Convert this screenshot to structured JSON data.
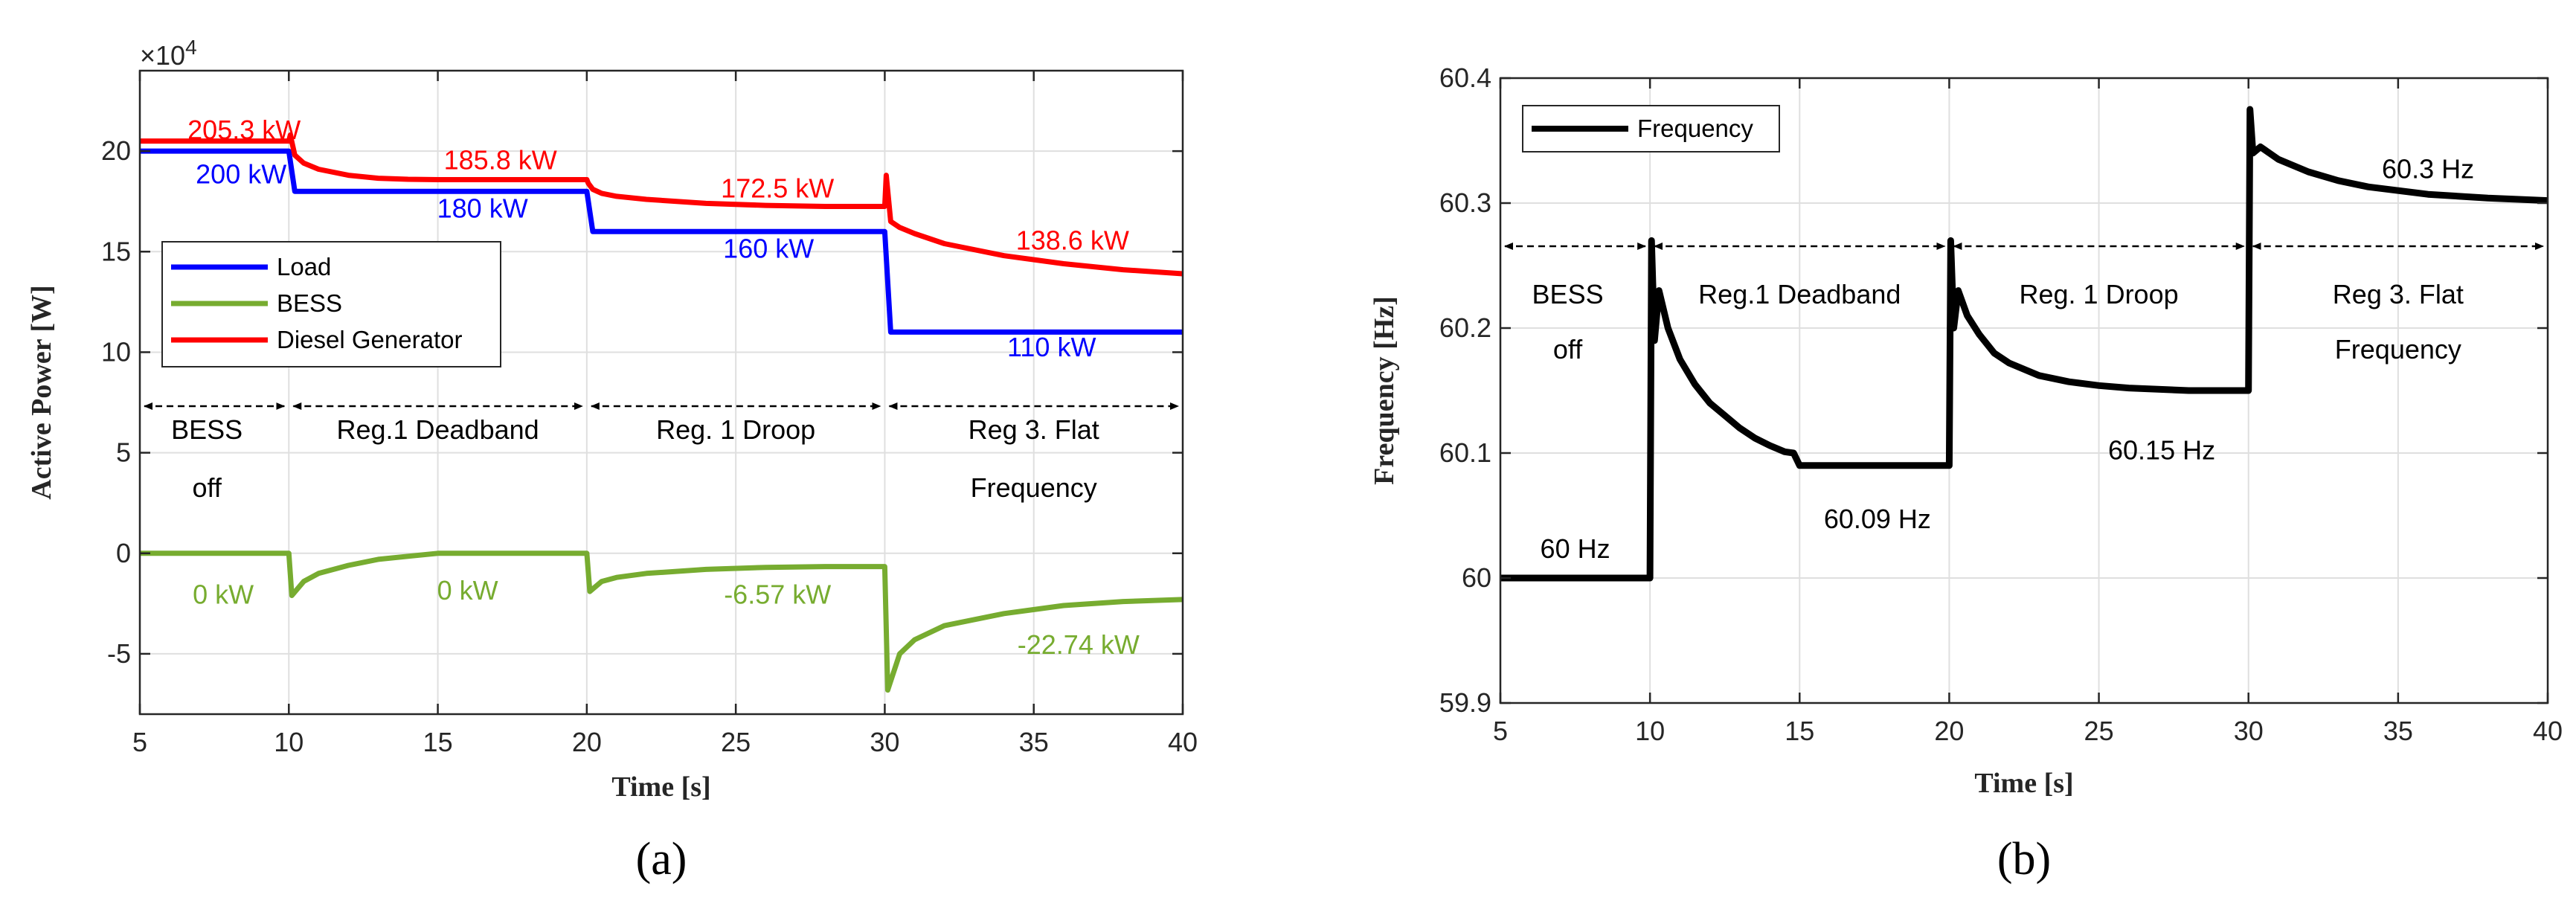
{
  "chart_data": [
    {
      "type": "line",
      "panel_label": "(a)",
      "xlabel": "Time [s]",
      "ylabel": "Active Power [W]",
      "y_multiplier": "×10",
      "y_multiplier_exp": "4",
      "xlim": [
        5,
        40
      ],
      "ylim": [
        -8,
        24
      ],
      "xticks": [
        5,
        10,
        15,
        20,
        25,
        30,
        35,
        40
      ],
      "xtick_labels": [
        "5",
        "10",
        "15",
        "20",
        "25",
        "30",
        "35",
        "40"
      ],
      "yticks": [
        -5,
        0,
        5,
        10,
        15,
        20
      ],
      "ytick_labels": [
        "-5",
        "0",
        "5",
        "10",
        "15",
        "20"
      ],
      "grid": true,
      "legend_position": "middle-left",
      "series": [
        {
          "name": "Load",
          "color": "#0000ff",
          "x": [
            5,
            10,
            10.2,
            20,
            20.2,
            30,
            30.2,
            40
          ],
          "y": [
            20.0,
            20.0,
            18.0,
            18.0,
            16.0,
            16.0,
            11.0,
            11.0
          ]
        },
        {
          "name": "BESS",
          "color": "#77ac30",
          "x": [
            5,
            10,
            10.1,
            10.5,
            11,
            12,
            13,
            14,
            15,
            20,
            20.1,
            20.5,
            21,
            22,
            24,
            26,
            28,
            30,
            30.1,
            30.5,
            31,
            32,
            34,
            36,
            38,
            40
          ],
          "y": [
            0,
            0,
            -2.1,
            -1.4,
            -1.0,
            -0.6,
            -0.3,
            -0.15,
            0,
            0,
            -1.9,
            -1.4,
            -1.2,
            -1.0,
            -0.8,
            -0.7,
            -0.66,
            -0.66,
            -6.8,
            -5.0,
            -4.3,
            -3.6,
            -3.0,
            -2.6,
            -2.4,
            -2.3
          ]
        },
        {
          "name": "Diesel Generator",
          "color": "#ff0000",
          "x": [
            5,
            10,
            10.05,
            10.2,
            10.5,
            11,
            12,
            13,
            14,
            15,
            20,
            20.05,
            20.2,
            20.5,
            21,
            22,
            24,
            26,
            28,
            30,
            30.05,
            30.2,
            30.5,
            31,
            32,
            34,
            36,
            38,
            40
          ],
          "y": [
            20.5,
            20.5,
            20.8,
            19.8,
            19.4,
            19.1,
            18.8,
            18.65,
            18.6,
            18.58,
            18.58,
            18.4,
            18.1,
            17.9,
            17.75,
            17.6,
            17.4,
            17.3,
            17.25,
            17.25,
            18.8,
            16.5,
            16.2,
            15.9,
            15.4,
            14.8,
            14.4,
            14.1,
            13.9
          ]
        }
      ],
      "annotations": [
        {
          "text": "205.3 kW",
          "x": 8.5,
          "y": 20.6,
          "color": "#ff0000"
        },
        {
          "text": "200 kW",
          "x": 8.4,
          "y": 18.4,
          "color": "#0000ff"
        },
        {
          "text": "185.8 kW",
          "x": 17.1,
          "y": 19.1,
          "color": "#ff0000"
        },
        {
          "text": "180 kW",
          "x": 16.5,
          "y": 16.7,
          "color": "#0000ff"
        },
        {
          "text": "172.5 kW",
          "x": 26.4,
          "y": 17.7,
          "color": "#ff0000"
        },
        {
          "text": "160 kW",
          "x": 26.1,
          "y": 14.7,
          "color": "#0000ff"
        },
        {
          "text": "138.6 kW",
          "x": 36.3,
          "y": 15.1,
          "color": "#ff0000"
        },
        {
          "text": "110 kW",
          "x": 35.6,
          "y": 9.8,
          "color": "#0000ff"
        },
        {
          "text": "0 kW",
          "x": 7.8,
          "y": -2.5,
          "color": "#77ac30"
        },
        {
          "text": "0 kW",
          "x": 16.0,
          "y": -2.3,
          "color": "#77ac30"
        },
        {
          "text": "-6.57 kW",
          "x": 26.4,
          "y": -2.5,
          "color": "#77ac30"
        },
        {
          "text": "-22.74 kW",
          "x": 36.5,
          "y": -5.0,
          "color": "#77ac30"
        }
      ],
      "regions": [
        {
          "from": 5,
          "to": 10,
          "lines": [
            "BESS",
            "off"
          ]
        },
        {
          "from": 10,
          "to": 20,
          "lines": [
            "Reg.1 Deadband"
          ]
        },
        {
          "from": 20,
          "to": 30,
          "lines": [
            "Reg. 1 Droop"
          ]
        },
        {
          "from": 30,
          "to": 40,
          "lines": [
            "Reg 3. Flat",
            "Frequency"
          ]
        }
      ]
    },
    {
      "type": "line",
      "panel_label": "(b)",
      "xlabel": "Time [s]",
      "ylabel": "Frequency [Hz]",
      "xlim": [
        5,
        40
      ],
      "ylim": [
        59.9,
        60.4
      ],
      "xticks": [
        5,
        10,
        15,
        20,
        25,
        30,
        35,
        40
      ],
      "xtick_labels": [
        "5",
        "10",
        "15",
        "20",
        "25",
        "30",
        "35",
        "40"
      ],
      "yticks": [
        59.9,
        60.0,
        60.1,
        60.2,
        60.3,
        60.4
      ],
      "ytick_labels": [
        "59.9",
        "60",
        "60.1",
        "60.2",
        "60.3",
        "60.4"
      ],
      "grid": true,
      "legend_position": "top-left",
      "series": [
        {
          "name": "Frequency",
          "color": "#000000",
          "x": [
            5,
            10,
            10.05,
            10.15,
            10.3,
            10.6,
            11,
            11.5,
            12,
            12.5,
            13,
            13.5,
            14,
            14.5,
            14.8,
            15,
            20,
            20.05,
            20.15,
            20.3,
            20.6,
            21,
            21.5,
            22,
            23,
            24,
            25,
            26,
            28,
            30,
            30.05,
            30.15,
            30.4,
            31,
            32,
            33,
            34,
            35,
            36,
            38,
            40
          ],
          "y": [
            60.0,
            60.0,
            60.27,
            60.19,
            60.23,
            60.2,
            60.175,
            60.155,
            60.14,
            60.13,
            60.12,
            60.112,
            60.106,
            60.101,
            60.1,
            60.09,
            60.09,
            60.27,
            60.2,
            60.23,
            60.21,
            60.195,
            60.18,
            60.172,
            60.162,
            60.157,
            60.154,
            60.152,
            60.15,
            60.15,
            60.375,
            60.34,
            60.345,
            60.335,
            60.325,
            60.318,
            60.313,
            60.31,
            60.307,
            60.304,
            60.302
          ]
        }
      ],
      "annotations": [
        {
          "text": "60 Hz",
          "x": 7.5,
          "y": 60.016,
          "color": "#000000"
        },
        {
          "text": "60.09 Hz",
          "x": 17.6,
          "y": 60.04,
          "color": "#000000"
        },
        {
          "text": "60.15 Hz",
          "x": 27.1,
          "y": 60.095,
          "color": "#000000"
        },
        {
          "text": "60.3 Hz",
          "x": 36.0,
          "y": 60.32,
          "color": "#000000"
        }
      ],
      "regions": [
        {
          "from": 5,
          "to": 10,
          "lines": [
            "BESS",
            "off"
          ]
        },
        {
          "from": 10,
          "to": 20,
          "lines": [
            "Reg.1 Deadband"
          ]
        },
        {
          "from": 20,
          "to": 30,
          "lines": [
            "Reg. 1 Droop"
          ]
        },
        {
          "from": 30,
          "to": 40,
          "lines": [
            "Reg 3. Flat",
            "Frequency"
          ]
        }
      ]
    }
  ]
}
